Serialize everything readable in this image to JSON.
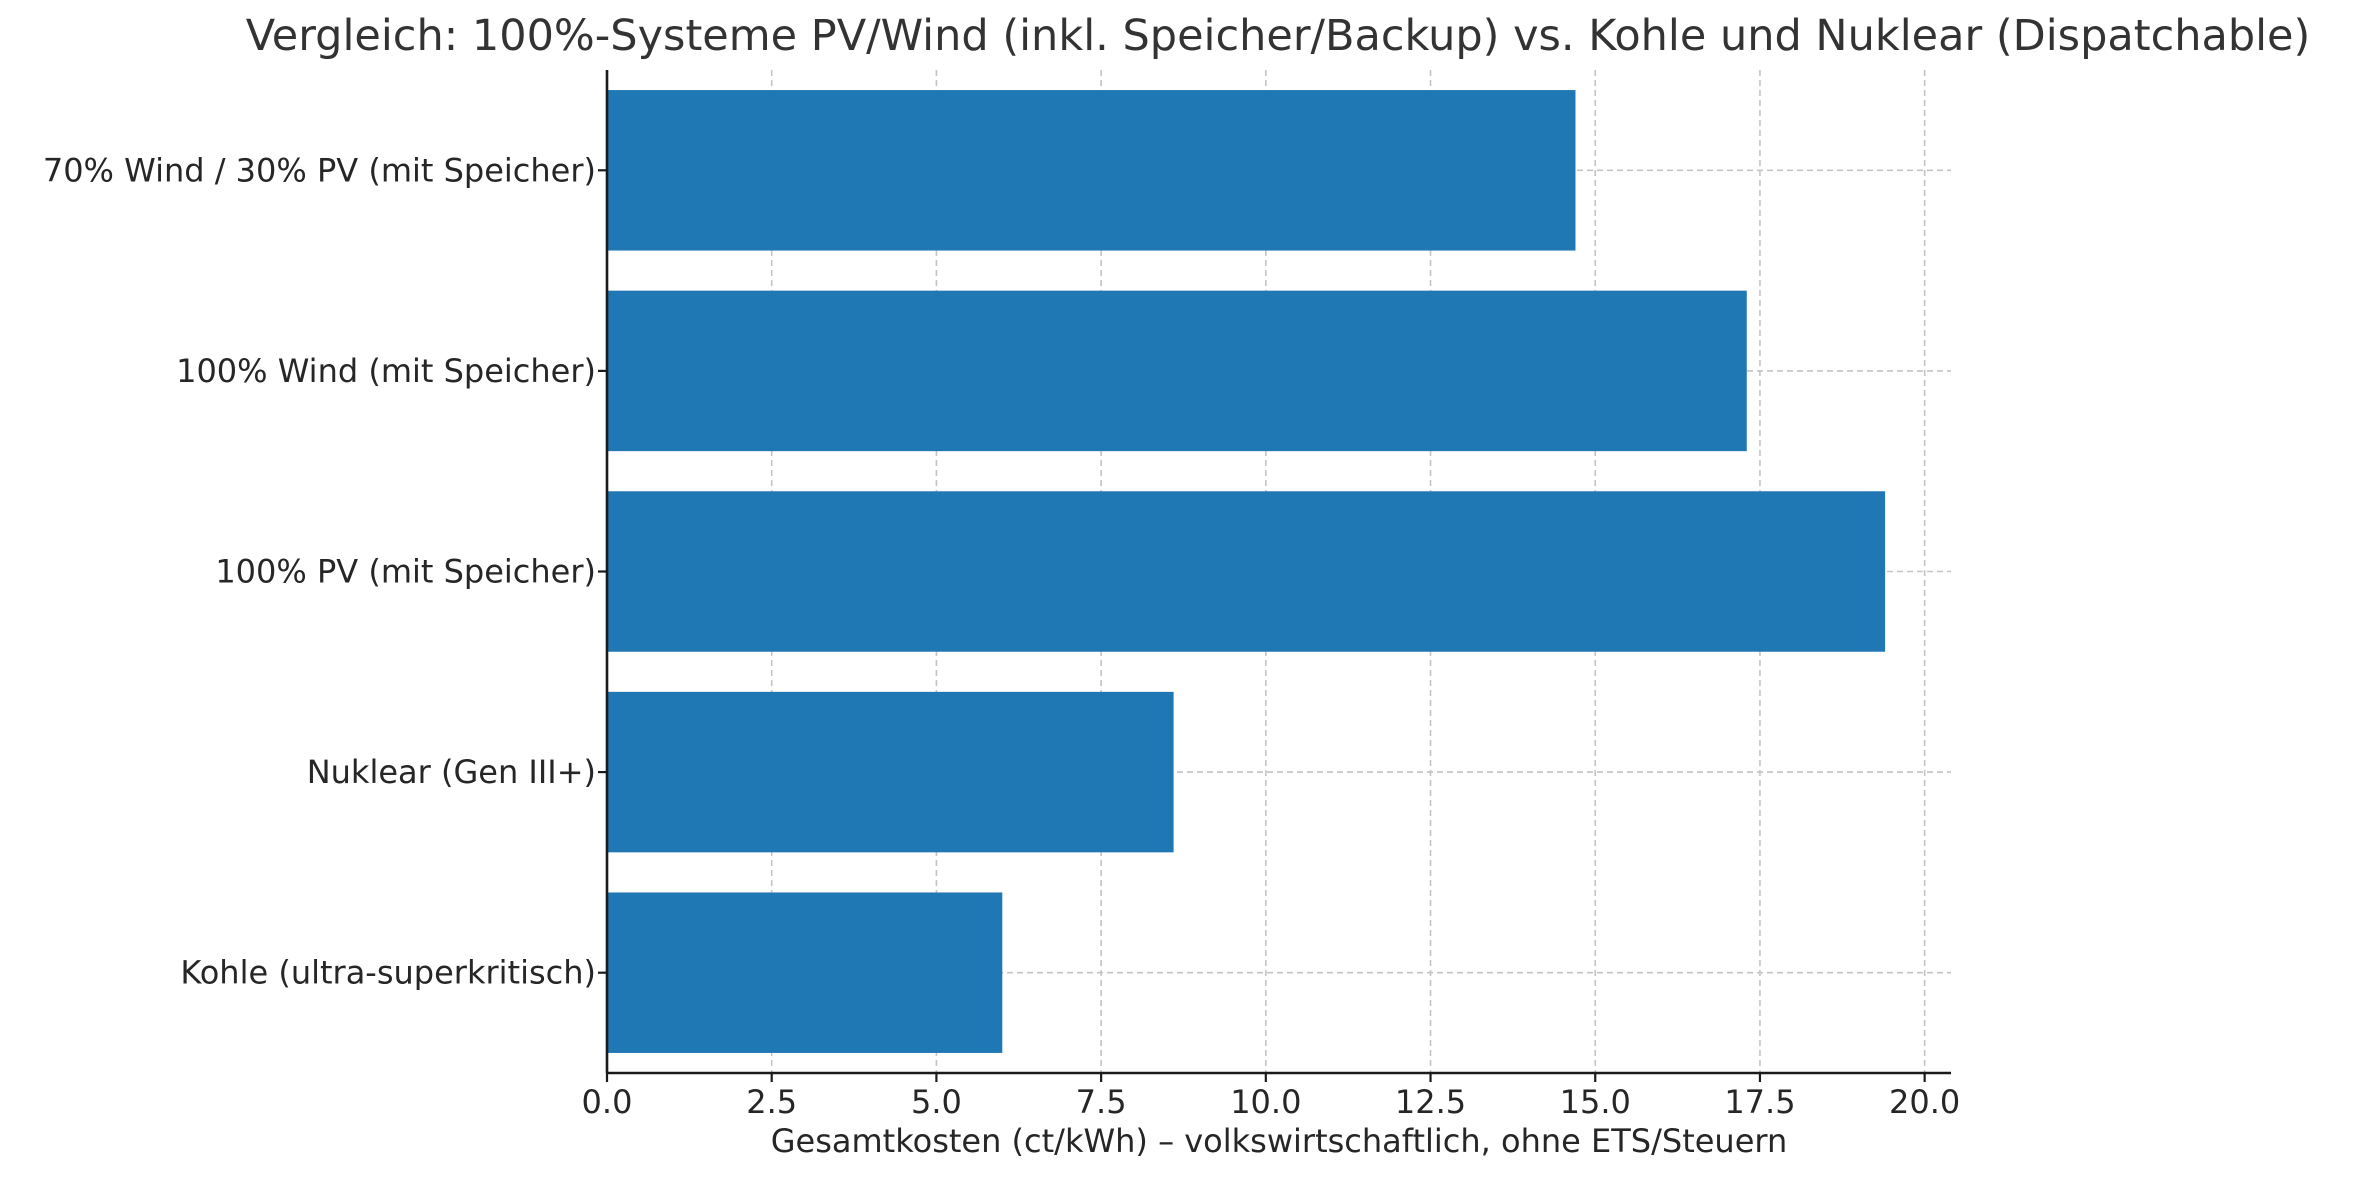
{
  "chart_data": {
    "type": "bar",
    "orientation": "horizontal",
    "title": "Vergleich: 100%-Systeme PV/Wind (inkl. Speicher/Backup) vs. Kohle und Nuklear (Dispatchable)",
    "xlabel": "Gesamtkosten (ct/kWh) – volkswirtschaftlich, ohne ETS/Steuern",
    "ylabel": "",
    "categories": [
      "Kohle (ultra-superkritisch)",
      "Nuklear (Gen III+)",
      "100% PV (mit Speicher)",
      "100% Wind (mit Speicher)",
      "70% Wind / 30% PV (mit Speicher)"
    ],
    "values": [
      6.0,
      8.6,
      19.4,
      17.3,
      14.7
    ],
    "xlim": [
      0,
      20.4
    ],
    "xticks": [
      0.0,
      2.5,
      5.0,
      7.5,
      10.0,
      12.5,
      15.0,
      17.5,
      20.0
    ],
    "xtick_labels": [
      "0.0",
      "2.5",
      "5.0",
      "7.5",
      "10.0",
      "12.5",
      "15.0",
      "17.5",
      "20.0"
    ],
    "grid": true,
    "bar_color": "#1f77b4"
  }
}
